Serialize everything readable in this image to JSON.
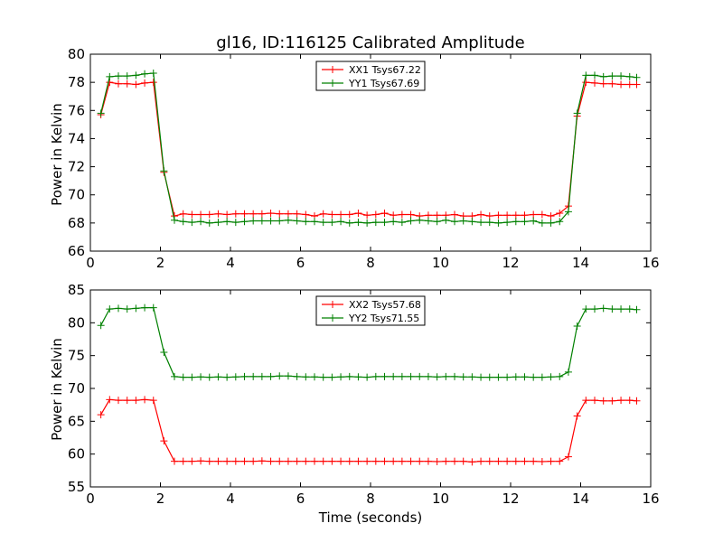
{
  "chart_data": [
    {
      "type": "line",
      "title": "gl16, ID:116125 Calibrated Amplitude",
      "xlabel": "",
      "ylabel": "Power in Kelvin",
      "xlim": [
        0,
        16
      ],
      "ylim": [
        66,
        80
      ],
      "xticks": [
        0,
        2,
        4,
        6,
        8,
        10,
        12,
        14,
        16
      ],
      "yticks": [
        66,
        68,
        70,
        72,
        74,
        76,
        78,
        80
      ],
      "grid": false,
      "legend_position": "top-center",
      "x": [
        0.3,
        0.55,
        0.8,
        1.05,
        1.3,
        1.55,
        1.8,
        2.1,
        2.4,
        2.65,
        2.9,
        3.15,
        3.4,
        3.65,
        3.9,
        4.15,
        4.4,
        4.65,
        4.9,
        5.15,
        5.4,
        5.65,
        5.9,
        6.15,
        6.4,
        6.65,
        6.9,
        7.15,
        7.4,
        7.65,
        7.9,
        8.15,
        8.4,
        8.65,
        8.9,
        9.15,
        9.4,
        9.65,
        9.9,
        10.15,
        10.4,
        10.65,
        10.9,
        11.15,
        11.4,
        11.65,
        11.9,
        12.15,
        12.4,
        12.65,
        12.9,
        13.15,
        13.4,
        13.65,
        13.9,
        14.15,
        14.4,
        14.65,
        14.9,
        15.15,
        15.4,
        15.6
      ],
      "series": [
        {
          "name": "XX1 Tsys67.22",
          "color": "#ff0000",
          "values": [
            75.7,
            78.0,
            77.9,
            77.9,
            77.85,
            77.95,
            78.0,
            71.6,
            68.5,
            68.65,
            68.6,
            68.6,
            68.6,
            68.65,
            68.6,
            68.65,
            68.65,
            68.65,
            68.65,
            68.7,
            68.65,
            68.65,
            68.65,
            68.6,
            68.5,
            68.65,
            68.6,
            68.6,
            68.6,
            68.7,
            68.55,
            68.6,
            68.7,
            68.55,
            68.6,
            68.6,
            68.5,
            68.55,
            68.55,
            68.55,
            68.6,
            68.5,
            68.5,
            68.6,
            68.5,
            68.55,
            68.55,
            68.55,
            68.55,
            68.6,
            68.6,
            68.5,
            68.7,
            69.2,
            75.6,
            78.0,
            77.95,
            77.9,
            77.9,
            77.85,
            77.85,
            77.85
          ]
        },
        {
          "name": "YY1 Tsys67.69",
          "color": "#008000",
          "values": [
            75.8,
            78.4,
            78.45,
            78.45,
            78.5,
            78.6,
            78.65,
            71.7,
            68.2,
            68.1,
            68.05,
            68.1,
            68.0,
            68.05,
            68.1,
            68.05,
            68.1,
            68.15,
            68.15,
            68.15,
            68.15,
            68.2,
            68.15,
            68.1,
            68.1,
            68.05,
            68.05,
            68.1,
            68.0,
            68.05,
            68.0,
            68.05,
            68.05,
            68.1,
            68.05,
            68.15,
            68.2,
            68.15,
            68.1,
            68.2,
            68.1,
            68.15,
            68.1,
            68.05,
            68.05,
            68.0,
            68.05,
            68.1,
            68.1,
            68.15,
            68.0,
            68.0,
            68.1,
            68.8,
            75.8,
            78.5,
            78.5,
            78.4,
            78.45,
            78.45,
            78.4,
            78.35
          ]
        }
      ]
    },
    {
      "type": "line",
      "title": "",
      "xlabel": "Time (seconds)",
      "ylabel": "Power in Kelvin",
      "xlim": [
        0,
        16
      ],
      "ylim": [
        55,
        85
      ],
      "xticks": [
        0,
        2,
        4,
        6,
        8,
        10,
        12,
        14,
        16
      ],
      "yticks": [
        55,
        60,
        65,
        70,
        75,
        80,
        85
      ],
      "grid": false,
      "legend_position": "top-center",
      "x": [
        0.3,
        0.55,
        0.8,
        1.05,
        1.3,
        1.55,
        1.8,
        2.1,
        2.4,
        2.65,
        2.9,
        3.15,
        3.4,
        3.65,
        3.9,
        4.15,
        4.4,
        4.65,
        4.9,
        5.15,
        5.4,
        5.65,
        5.9,
        6.15,
        6.4,
        6.65,
        6.9,
        7.15,
        7.4,
        7.65,
        7.9,
        8.15,
        8.4,
        8.65,
        8.9,
        9.15,
        9.4,
        9.65,
        9.9,
        10.15,
        10.4,
        10.65,
        10.9,
        11.15,
        11.4,
        11.65,
        11.9,
        12.15,
        12.4,
        12.65,
        12.9,
        13.15,
        13.4,
        13.65,
        13.9,
        14.15,
        14.4,
        14.65,
        14.9,
        15.15,
        15.4,
        15.6
      ],
      "series": [
        {
          "name": "XX2 Tsys57.68",
          "color": "#ff0000",
          "values": [
            66.0,
            68.3,
            68.2,
            68.2,
            68.2,
            68.3,
            68.2,
            62.0,
            58.9,
            58.9,
            58.9,
            58.95,
            58.9,
            58.9,
            58.9,
            58.9,
            58.9,
            58.9,
            58.95,
            58.9,
            58.9,
            58.9,
            58.9,
            58.9,
            58.9,
            58.9,
            58.9,
            58.9,
            58.9,
            58.9,
            58.9,
            58.9,
            58.9,
            58.9,
            58.9,
            58.9,
            58.9,
            58.9,
            58.85,
            58.9,
            58.9,
            58.9,
            58.8,
            58.9,
            58.9,
            58.9,
            58.9,
            58.9,
            58.9,
            58.9,
            58.85,
            58.9,
            58.9,
            59.6,
            65.8,
            68.2,
            68.2,
            68.1,
            68.1,
            68.2,
            68.2,
            68.1
          ]
        },
        {
          "name": "YY2 Tsys71.55",
          "color": "#008000",
          "values": [
            79.6,
            82.1,
            82.2,
            82.1,
            82.2,
            82.3,
            82.3,
            75.5,
            71.8,
            71.7,
            71.7,
            71.75,
            71.7,
            71.75,
            71.7,
            71.75,
            71.8,
            71.8,
            71.8,
            71.8,
            71.9,
            71.9,
            71.8,
            71.75,
            71.75,
            71.7,
            71.7,
            71.75,
            71.8,
            71.75,
            71.7,
            71.8,
            71.8,
            71.8,
            71.8,
            71.8,
            71.8,
            71.8,
            71.75,
            71.8,
            71.8,
            71.75,
            71.75,
            71.7,
            71.7,
            71.7,
            71.7,
            71.75,
            71.75,
            71.7,
            71.7,
            71.75,
            71.8,
            72.5,
            79.5,
            82.1,
            82.1,
            82.2,
            82.1,
            82.1,
            82.1,
            82.0
          ]
        }
      ]
    }
  ]
}
